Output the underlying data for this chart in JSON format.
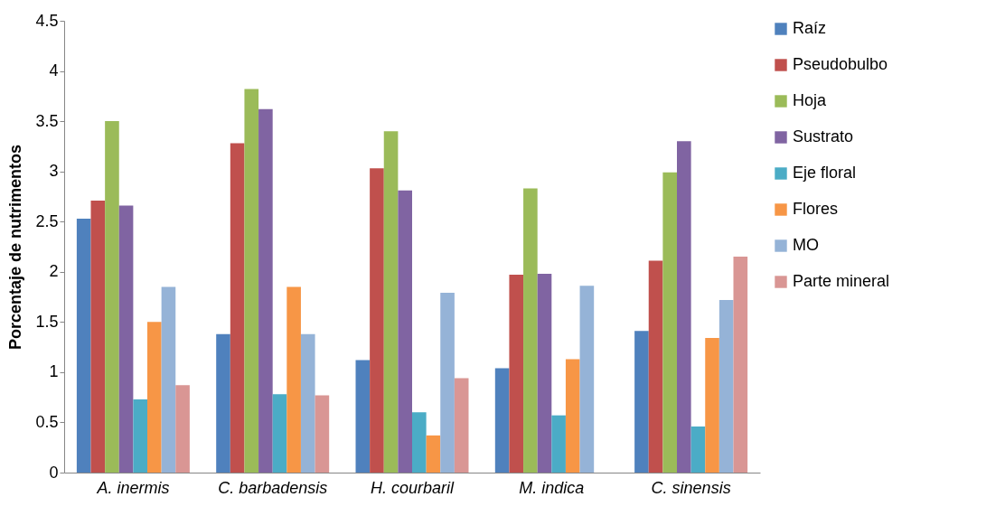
{
  "chart_data": {
    "type": "bar",
    "ylabel": "Porcentaje de nutrimentos",
    "categories": [
      "A. inermis",
      "C. barbadensis",
      "H. courbaril",
      "M. indica",
      "C. sinensis"
    ],
    "series": [
      {
        "name": "Raíz",
        "color": "#4f81bd",
        "values": [
          2.53,
          1.38,
          1.12,
          1.04,
          1.41
        ]
      },
      {
        "name": "Pseudobulbo",
        "color": "#c0504d",
        "values": [
          2.71,
          3.28,
          3.03,
          1.97,
          2.11
        ]
      },
      {
        "name": "Hoja",
        "color": "#9bbb59",
        "values": [
          3.5,
          3.82,
          3.4,
          2.83,
          2.99
        ]
      },
      {
        "name": "Sustrato",
        "color": "#8064a2",
        "values": [
          2.66,
          3.62,
          2.81,
          1.98,
          3.3
        ]
      },
      {
        "name": "Eje floral",
        "color": "#4bacc6",
        "values": [
          0.73,
          0.78,
          0.6,
          0.57,
          0.46
        ]
      },
      {
        "name": "Flores",
        "color": "#f79646",
        "values": [
          1.5,
          1.85,
          0.37,
          1.13,
          1.34
        ]
      },
      {
        "name": "MO",
        "color": "#95b3d7",
        "values": [
          1.85,
          1.38,
          1.79,
          1.86,
          1.72
        ]
      },
      {
        "name": "Parte mineral",
        "color": "#d99694",
        "values": [
          0.87,
          0.77,
          0.94,
          null,
          2.15
        ]
      }
    ],
    "ylim": [
      0,
      4.5
    ],
    "yticks": [
      0,
      0.5,
      1,
      1.5,
      2,
      2.5,
      3,
      3.5,
      4,
      4.5
    ],
    "grid": false,
    "legend": "right"
  }
}
